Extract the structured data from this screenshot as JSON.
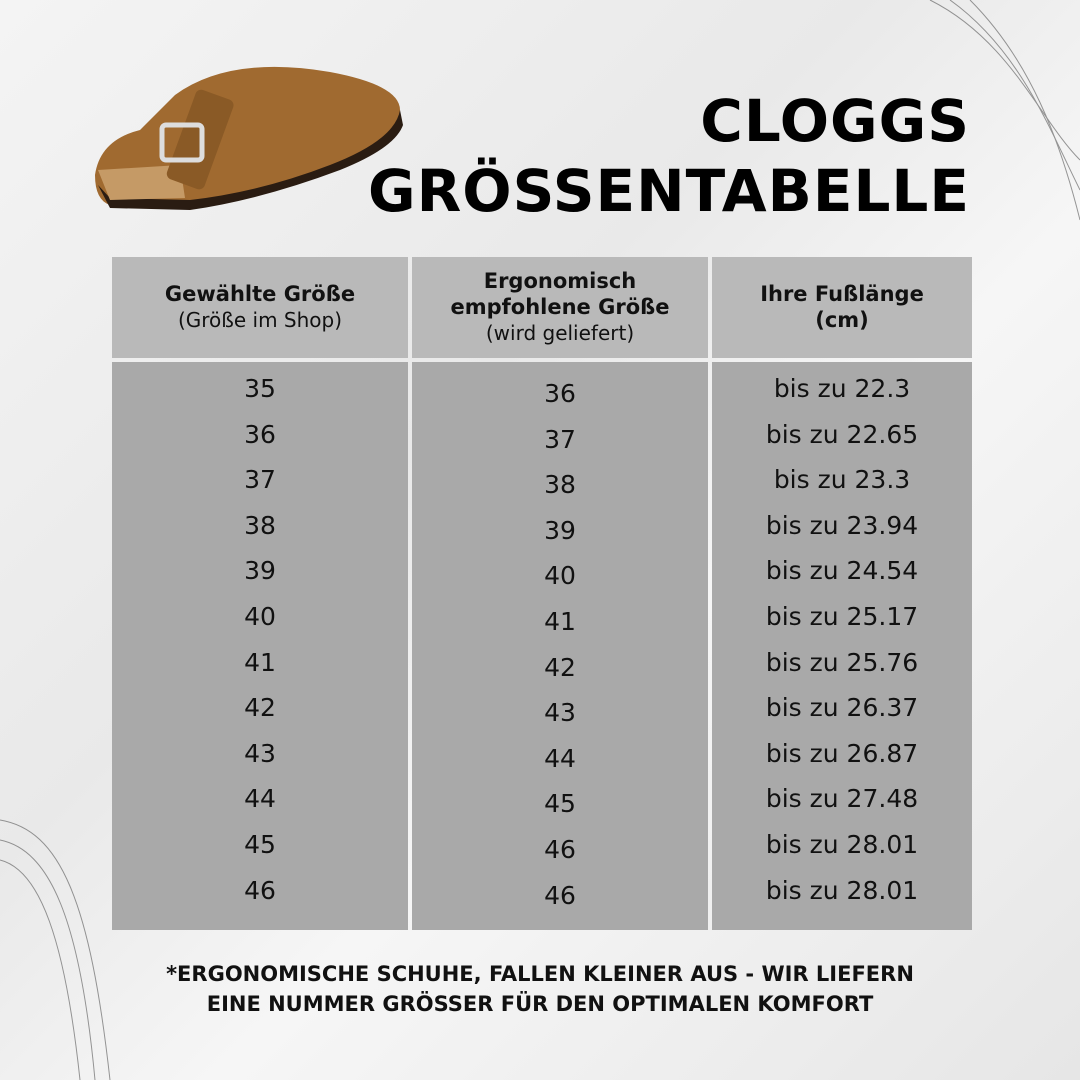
{
  "header": {
    "title_lines": [
      "CLOGGS",
      "GRÖSSENTABELLE"
    ]
  },
  "table": {
    "columns": [
      {
        "title_lines": [
          "Gewählte Größe"
        ],
        "subtitle": "(Größe im Shop)"
      },
      {
        "title_lines": [
          "Ergonomisch",
          "empfohlene Größe"
        ],
        "subtitle": "(wird geliefert)"
      },
      {
        "title_lines": [
          "Ihre Fußlänge",
          "(cm)"
        ]
      }
    ],
    "rows": [
      [
        "35",
        "36",
        "bis zu 22.3"
      ],
      [
        "36",
        "37",
        "bis zu 22.65"
      ],
      [
        "37",
        "38",
        "bis zu 23.3"
      ],
      [
        "38",
        "39",
        "bis zu 23.94"
      ],
      [
        "39",
        "40",
        "bis zu 24.54"
      ],
      [
        "40",
        "41",
        "bis zu 25.17"
      ],
      [
        "41",
        "42",
        "bis zu 25.76"
      ],
      [
        "42",
        "43",
        "bis zu 26.37"
      ],
      [
        "43",
        "44",
        "bis zu 26.87"
      ],
      [
        "44",
        "45",
        "bis zu 27.48"
      ],
      [
        "45",
        "46",
        "bis zu 28.01"
      ],
      [
        "46",
        "46",
        "bis zu 28.01"
      ]
    ]
  },
  "footnote": [
    "*ERGONOMISCHE SCHUHE, FALLEN KLEINER AUS - WIR LIEFERN",
    "EINE NUMMER GRÖSSER FÜR DEN OPTIMALEN KOMFORT"
  ]
}
